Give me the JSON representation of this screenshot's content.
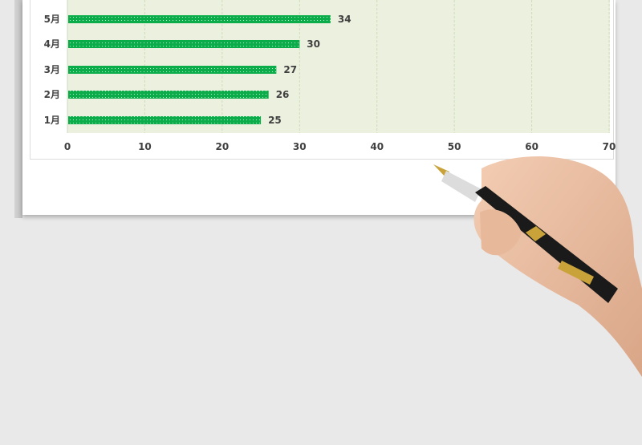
{
  "chart_data": {
    "type": "bar",
    "orientation": "horizontal",
    "categories": [
      "1月",
      "2月",
      "3月",
      "4月",
      "5月"
    ],
    "values": [
      25,
      26,
      27,
      30,
      34
    ],
    "data_labels": [
      "25",
      "26",
      "27",
      "30",
      "34"
    ],
    "xlim": [
      0,
      70
    ],
    "xticks": [
      "0",
      "10",
      "20",
      "30",
      "40",
      "50",
      "60",
      "70"
    ],
    "grid": "vertical dashed",
    "legend": "none",
    "colors": {
      "bar": "#0aad4a",
      "bar_dots": "#ffffff",
      "plot_bg": "#ebf0df",
      "grid": "#cfdcbc"
    }
  }
}
